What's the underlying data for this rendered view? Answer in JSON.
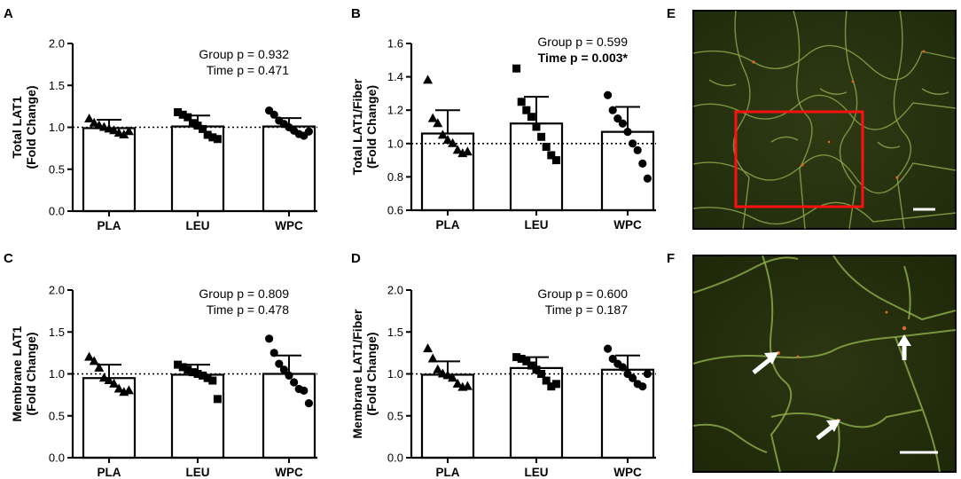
{
  "chart_data": [
    {
      "panel": "A",
      "type": "bar",
      "ylabel": [
        "Total LAT1",
        "(Fold Change)"
      ],
      "categories": [
        "PLA",
        "LEU",
        "WPC"
      ],
      "yticks": [
        "0.0",
        "0.5",
        "1.0",
        "1.5",
        "2.0"
      ],
      "ylim": [
        0,
        2.0
      ],
      "reference_line": 1.0,
      "stats": [
        {
          "text": "Group p = 0.932",
          "bold": false
        },
        {
          "text": "Time p = 0.471",
          "bold": false
        }
      ],
      "series": [
        {
          "name": "PLA",
          "marker": "triangle",
          "mean": 0.99,
          "sd": 0.1,
          "points": [
            1.1,
            1.05,
            1.02,
            1.0,
            0.98,
            0.96,
            0.93,
            0.91,
            0.95
          ]
        },
        {
          "name": "LEU",
          "marker": "square",
          "mean": 1.01,
          "sd": 0.13,
          "points": [
            1.18,
            1.15,
            1.12,
            1.05,
            1.02,
            0.98,
            0.91,
            0.88,
            0.86
          ]
        },
        {
          "name": "WPC",
          "marker": "circle",
          "mean": 1.01,
          "sd": 0.1,
          "points": [
            1.2,
            1.15,
            1.08,
            1.04,
            1.0,
            0.96,
            0.92,
            0.9,
            0.95
          ]
        }
      ]
    },
    {
      "panel": "B",
      "type": "bar",
      "ylabel": [
        "Total LAT1/Fiber",
        "(Fold Change)"
      ],
      "categories": [
        "PLA",
        "LEU",
        "WPC"
      ],
      "yticks": [
        "0.6",
        "0.8",
        "1.0",
        "1.2",
        "1.4",
        "1.6"
      ],
      "ylim": [
        0.6,
        1.6
      ],
      "reference_line": 1.0,
      "stats": [
        {
          "text": "Group p = 0.599",
          "bold": false
        },
        {
          "text": "Time p = 0.003*",
          "bold": true
        }
      ],
      "series": [
        {
          "name": "PLA",
          "marker": "triangle",
          "mean": 1.06,
          "sd": 0.14,
          "points": [
            1.38,
            1.15,
            1.12,
            1.05,
            1.02,
            1.0,
            0.96,
            0.94,
            0.95
          ]
        },
        {
          "name": "LEU",
          "marker": "square",
          "mean": 1.12,
          "sd": 0.16,
          "points": [
            1.45,
            1.25,
            1.2,
            1.16,
            1.1,
            1.04,
            0.98,
            0.93,
            0.9
          ]
        },
        {
          "name": "WPC",
          "marker": "circle",
          "mean": 1.07,
          "sd": 0.15,
          "points": [
            1.29,
            1.2,
            1.15,
            1.12,
            1.07,
            1.0,
            0.96,
            0.88,
            0.79
          ]
        }
      ]
    },
    {
      "panel": "C",
      "type": "bar",
      "ylabel": [
        "Membrane LAT1",
        "(Fold Change)"
      ],
      "categories": [
        "PLA",
        "LEU",
        "WPC"
      ],
      "yticks": [
        "0.0",
        "0.5",
        "1.0",
        "1.5",
        "2.0"
      ],
      "ylim": [
        0,
        2.0
      ],
      "reference_line": 1.0,
      "stats": [
        {
          "text": "Group p = 0.809",
          "bold": false
        },
        {
          "text": "Time p = 0.478",
          "bold": false
        }
      ],
      "series": [
        {
          "name": "PLA",
          "marker": "triangle",
          "mean": 0.95,
          "sd": 0.16,
          "points": [
            1.2,
            1.15,
            1.07,
            0.95,
            0.92,
            0.88,
            0.82,
            0.78,
            0.8
          ]
        },
        {
          "name": "LEU",
          "marker": "square",
          "mean": 0.99,
          "sd": 0.12,
          "points": [
            1.11,
            1.08,
            1.05,
            1.02,
            1.0,
            0.98,
            0.95,
            0.92,
            0.7
          ]
        },
        {
          "name": "WPC",
          "marker": "circle",
          "mean": 1.0,
          "sd": 0.22,
          "points": [
            1.42,
            1.25,
            1.12,
            1.05,
            0.98,
            0.9,
            0.82,
            0.8,
            0.65
          ]
        }
      ]
    },
    {
      "panel": "D",
      "type": "bar",
      "ylabel": [
        "Membrane LAT1/Fiber",
        "(Fold Change)"
      ],
      "categories": [
        "PLA",
        "LEU",
        "WPC"
      ],
      "yticks": [
        "0.0",
        "0.5",
        "1.0",
        "1.5",
        "2.0"
      ],
      "ylim": [
        0,
        2.0
      ],
      "reference_line": 1.0,
      "stats": [
        {
          "text": "Group p = 0.600",
          "bold": false
        },
        {
          "text": "Time p = 0.187",
          "bold": false
        }
      ],
      "series": [
        {
          "name": "PLA",
          "marker": "triangle",
          "mean": 0.99,
          "sd": 0.16,
          "points": [
            1.3,
            1.18,
            1.05,
            1.0,
            0.98,
            0.95,
            0.88,
            0.84,
            0.85
          ]
        },
        {
          "name": "LEU",
          "marker": "square",
          "mean": 1.07,
          "sd": 0.13,
          "points": [
            1.2,
            1.18,
            1.15,
            1.1,
            1.05,
            1.0,
            0.92,
            0.85,
            0.88
          ]
        },
        {
          "name": "WPC",
          "marker": "circle",
          "mean": 1.05,
          "sd": 0.17,
          "points": [
            1.3,
            1.18,
            1.12,
            1.08,
            1.0,
            0.95,
            0.88,
            0.85,
            1.0
          ]
        }
      ]
    }
  ],
  "micrographs": [
    {
      "panel": "E",
      "description_icon": "muscle-micrograph-overview"
    },
    {
      "panel": "F",
      "description_icon": "muscle-micrograph-zoom"
    }
  ]
}
